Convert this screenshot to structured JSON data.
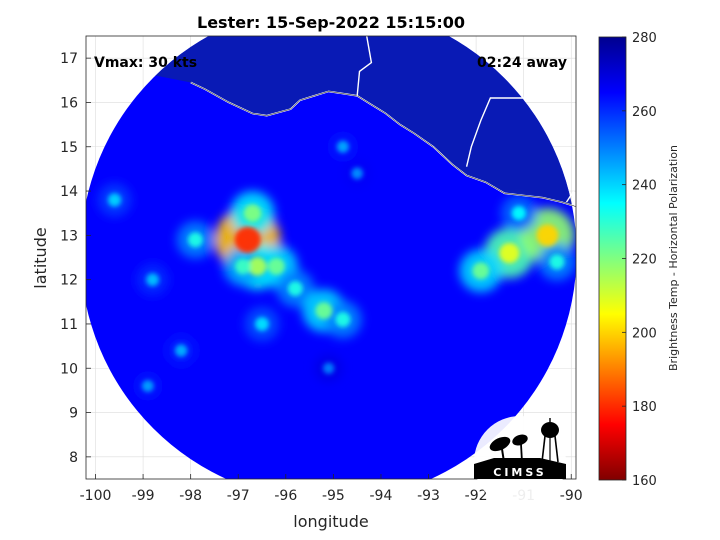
{
  "chart_data": {
    "type": "heatmap",
    "title": "Lester: 15-Sep-2022 15:15:00",
    "xlabel": "longitude",
    "ylabel": "latitude",
    "xlim": [
      -100.2,
      -89.9
    ],
    "ylim": [
      7.5,
      17.5
    ],
    "x_ticks": [
      -100,
      -99,
      -98,
      -97,
      -96,
      -95,
      -94,
      -93,
      -92,
      -91,
      -90
    ],
    "y_ticks": [
      8,
      9,
      10,
      11,
      12,
      13,
      14,
      15,
      16,
      17
    ],
    "grid": true,
    "colorbar": {
      "label": "Brightness Temp - Horizontal Polarization",
      "range": [
        160,
        280
      ],
      "ticks": [
        160,
        180,
        200,
        220,
        240,
        260,
        280
      ],
      "colormap": "jet"
    },
    "annotations": {
      "vmax": "Vmax: 30 kts",
      "time_away": "02:24 away"
    },
    "swath_center": [
      -95.1,
      12.6
    ],
    "background_value": 265,
    "features": [
      {
        "lon": -96.8,
        "lat": 12.9,
        "value": 180
      },
      {
        "lon": -96.6,
        "lat": 12.3,
        "value": 215
      },
      {
        "lon": -96.2,
        "lat": 12.3,
        "value": 222
      },
      {
        "lon": -96.7,
        "lat": 13.5,
        "value": 220
      },
      {
        "lon": -96.9,
        "lat": 12.3,
        "value": 228
      },
      {
        "lon": -95.8,
        "lat": 11.8,
        "value": 232
      },
      {
        "lon": -95.2,
        "lat": 11.3,
        "value": 222
      },
      {
        "lon": -94.8,
        "lat": 11.1,
        "value": 232
      },
      {
        "lon": -97.9,
        "lat": 12.9,
        "value": 232
      },
      {
        "lon": -99.6,
        "lat": 13.8,
        "value": 240
      },
      {
        "lon": -91.3,
        "lat": 12.6,
        "value": 208
      },
      {
        "lon": -90.5,
        "lat": 13.0,
        "value": 200
      },
      {
        "lon": -91.9,
        "lat": 12.2,
        "value": 222
      },
      {
        "lon": -91.1,
        "lat": 13.5,
        "value": 235
      },
      {
        "lon": -90.3,
        "lat": 12.4,
        "value": 232
      },
      {
        "lon": -94.8,
        "lat": 15.0,
        "value": 245
      },
      {
        "lon": -94.5,
        "lat": 14.4,
        "value": 248
      },
      {
        "lon": -98.8,
        "lat": 12.0,
        "value": 242
      },
      {
        "lon": -98.2,
        "lat": 10.4,
        "value": 244
      },
      {
        "lon": -98.9,
        "lat": 9.6,
        "value": 246
      },
      {
        "lon": -95.1,
        "lat": 10.0,
        "value": 250
      },
      {
        "lon": -96.5,
        "lat": 11.0,
        "value": 238
      }
    ],
    "coastline": [
      [
        -98.0,
        16.45
      ],
      [
        -97.7,
        16.3
      ],
      [
        -97.2,
        16.0
      ],
      [
        -96.7,
        15.75
      ],
      [
        -96.4,
        15.7
      ],
      [
        -95.9,
        15.85
      ],
      [
        -95.7,
        16.05
      ],
      [
        -95.4,
        16.15
      ],
      [
        -95.1,
        16.25
      ],
      [
        -94.8,
        16.2
      ],
      [
        -94.5,
        16.15
      ],
      [
        -94.2,
        15.95
      ],
      [
        -93.9,
        15.75
      ],
      [
        -93.6,
        15.5
      ],
      [
        -93.3,
        15.3
      ],
      [
        -92.9,
        15.0
      ],
      [
        -92.5,
        14.6
      ],
      [
        -92.2,
        14.35
      ],
      [
        -91.8,
        14.2
      ],
      [
        -91.4,
        13.95
      ],
      [
        -91.0,
        13.9
      ],
      [
        -90.6,
        13.85
      ],
      [
        -90.2,
        13.75
      ],
      [
        -89.9,
        13.65
      ]
    ],
    "borders": [
      [
        [
          -94.5,
          16.15
        ],
        [
          -94.45,
          16.7
        ],
        [
          -94.2,
          16.9
        ],
        [
          -94.3,
          17.5
        ]
      ],
      [
        [
          -92.2,
          14.55
        ],
        [
          -92.1,
          15.0
        ],
        [
          -91.9,
          15.6
        ],
        [
          -91.7,
          16.1
        ],
        [
          -91.2,
          16.1
        ],
        [
          -90.5,
          16.1
        ]
      ],
      [
        [
          -90.3,
          16.1
        ],
        [
          -90.45,
          16.5
        ],
        [
          -90.8,
          16.8
        ]
      ],
      [
        [
          -90.1,
          13.75
        ],
        [
          -89.95,
          14.0
        ]
      ]
    ],
    "land_fill": [
      [
        -100.2,
        17.5
      ],
      [
        -100.2,
        16.7
      ],
      [
        -99.5,
        16.65
      ],
      [
        -98.7,
        16.6
      ],
      [
        -98.0,
        16.45
      ],
      [
        -97.7,
        16.3
      ],
      [
        -97.2,
        16.0
      ],
      [
        -96.7,
        15.75
      ],
      [
        -96.4,
        15.7
      ],
      [
        -95.9,
        15.85
      ],
      [
        -95.7,
        16.05
      ],
      [
        -95.4,
        16.15
      ],
      [
        -95.1,
        16.25
      ],
      [
        -94.8,
        16.2
      ],
      [
        -94.5,
        16.15
      ],
      [
        -94.2,
        15.95
      ],
      [
        -93.9,
        15.75
      ],
      [
        -93.6,
        15.5
      ],
      [
        -93.3,
        15.3
      ],
      [
        -92.9,
        15.0
      ],
      [
        -92.5,
        14.6
      ],
      [
        -92.2,
        14.35
      ],
      [
        -91.8,
        14.2
      ],
      [
        -91.4,
        13.95
      ],
      [
        -91.0,
        13.9
      ],
      [
        -90.6,
        13.85
      ],
      [
        -90.2,
        13.75
      ],
      [
        -89.9,
        13.65
      ],
      [
        -89.9,
        17.5
      ]
    ],
    "logo_text": "CIMSS"
  }
}
